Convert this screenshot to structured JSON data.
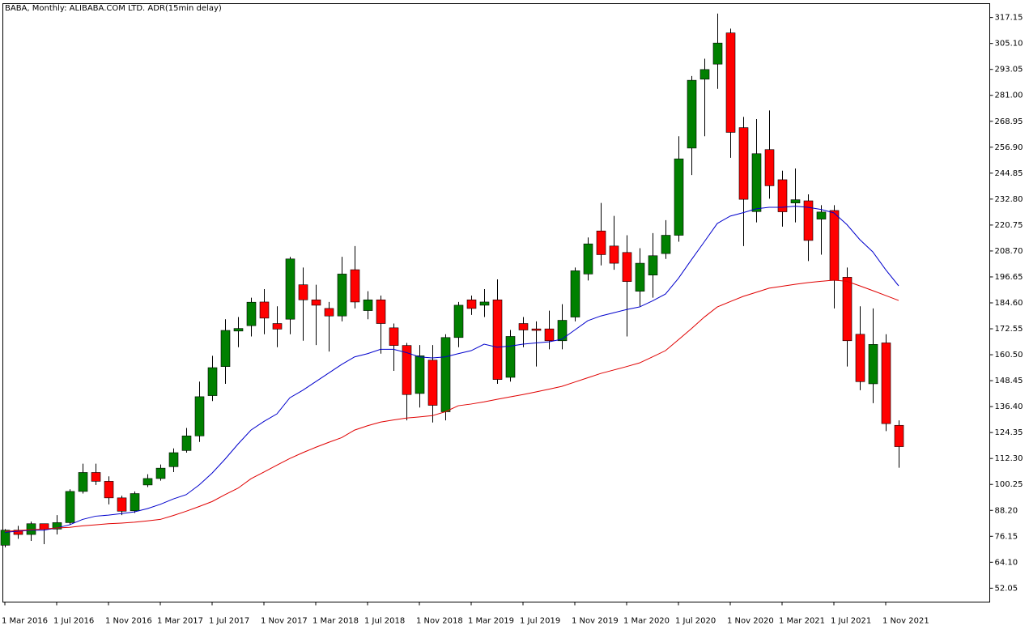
{
  "chart_data": {
    "type": "candlestick",
    "title": "BABA, Monthly:  ALIBABA.COM LTD. ADR(15min delay)",
    "categories": [
      "1 Mar 2016",
      null,
      null,
      null,
      "1 Jul 2016",
      null,
      null,
      null,
      "1 Nov 2016",
      null,
      null,
      null,
      "1 Mar 2017",
      null,
      null,
      null,
      "1 Jul 2017",
      null,
      null,
      null,
      "1 Nov 2017",
      null,
      null,
      null,
      "1 Mar 2018",
      null,
      null,
      null,
      "1 Jul 2018",
      null,
      null,
      null,
      "1 Nov 2018",
      null,
      null,
      null,
      "1 Mar 2019",
      null,
      null,
      null,
      "1 Jul 2019",
      null,
      null,
      null,
      "1 Nov 2019",
      null,
      null,
      null,
      "1 Mar 2020",
      null,
      null,
      null,
      "1 Jul 2020",
      null,
      null,
      null,
      "1 Nov 2020",
      null,
      null,
      null,
      "1 Mar 2021",
      null,
      null,
      null,
      "1 Jul 2021",
      null,
      null,
      null,
      "1 Nov 2021",
      null
    ],
    "open": [
      72,
      79,
      77,
      82,
      79.5,
      82.5,
      97,
      105.8,
      101.7,
      94,
      88,
      100,
      103,
      108.5,
      116,
      122.8,
      141.5,
      155,
      171.5,
      174,
      185,
      175,
      177,
      193,
      186,
      182,
      178.5,
      200,
      181,
      186,
      173,
      164.8,
      142.5,
      158,
      134,
      168.5,
      186,
      183.5,
      186,
      150,
      175,
      172.5,
      172.5,
      167,
      178,
      198,
      218,
      211,
      208,
      190,
      197.5,
      207.5,
      216,
      256.5,
      288.5,
      295.5,
      310,
      266,
      227,
      255.8,
      241.8,
      231,
      232,
      223.5,
      227.5,
      196.5,
      170,
      147,
      166,
      127.7
    ],
    "high": [
      79.5,
      81,
      83,
      82,
      86,
      98,
      109.9,
      109.9,
      104,
      95,
      97,
      105,
      109.5,
      117,
      126.5,
      148,
      160,
      177,
      178,
      187,
      191,
      183,
      206,
      201,
      193,
      185,
      206,
      211,
      190,
      188,
      175,
      166,
      165,
      165,
      170,
      185,
      188,
      191,
      195.5,
      172,
      178,
      176,
      181,
      184,
      201,
      215,
      231,
      225,
      216,
      210,
      217,
      223,
      262,
      290,
      298,
      319,
      312,
      271,
      270,
      274,
      246,
      247,
      235,
      230,
      230,
      201,
      183,
      182,
      170,
      130
    ],
    "low": [
      71,
      75,
      74,
      72.5,
      77,
      81.5,
      96,
      100,
      91,
      86,
      87,
      99,
      102,
      106,
      115,
      120,
      139,
      147,
      164,
      169,
      170,
      164,
      170,
      167,
      165,
      162,
      176,
      182,
      177,
      161,
      153,
      130,
      136,
      129,
      130,
      164,
      179,
      178,
      147,
      148,
      164,
      155,
      163,
      163,
      176,
      195,
      202,
      200,
      169,
      183,
      187,
      205,
      213,
      244,
      262,
      284,
      252,
      211,
      222,
      233,
      220,
      222,
      204,
      207,
      182,
      155,
      144,
      138,
      125,
      108
    ],
    "close": [
      79,
      77,
      82,
      79.5,
      82.5,
      97,
      105.8,
      101.7,
      94,
      87.8,
      96,
      103,
      107.8,
      115,
      122.8,
      141,
      154.5,
      171.8,
      172.7,
      184.9,
      177.5,
      172.4,
      205,
      186,
      183.5,
      178.5,
      198,
      185,
      186,
      175,
      164.8,
      142,
      160,
      137,
      168.5,
      183.5,
      182,
      185,
      149,
      169,
      172,
      171.8,
      167,
      176.5,
      199.5,
      212,
      207,
      203,
      194.5,
      203,
      206.5,
      216,
      251.5,
      288,
      293,
      305.3,
      263.8,
      232.7,
      253.9,
      239,
      226.9,
      232.5,
      213.6,
      226.8,
      195,
      167,
      148,
      165.3,
      128.5,
      117.8
    ],
    "up_color": "#008000",
    "down_color": "#ff0000",
    "series": [
      {
        "color": "#0000cc",
        "values": [
          78,
          78.5,
          79,
          79,
          80,
          81.5,
          84,
          85.5,
          86,
          86.7,
          87.5,
          89,
          91,
          93.5,
          95.5,
          100,
          105.5,
          112,
          119,
          125.5,
          129.5,
          133,
          140.5,
          144,
          148,
          152,
          156,
          159.5,
          161,
          163,
          163,
          161.5,
          159.5,
          159,
          159.5,
          161,
          162.4,
          165.4,
          164,
          164.5,
          165.4,
          166,
          166.5,
          167.7,
          172,
          176.3,
          178.5,
          180,
          181.5,
          182.7,
          185.5,
          188.7,
          196,
          204.6,
          213,
          221.5,
          224.9,
          226.5,
          228.3,
          229,
          229,
          229.5,
          229,
          228,
          226.4,
          221,
          214,
          208.3,
          200,
          192.5
        ]
      },
      {
        "color": "#e00000",
        "values": [
          78.4,
          78.8,
          79.2,
          79.5,
          80,
          80.3,
          81,
          81.5,
          82,
          82.3,
          82.7,
          83.3,
          84,
          85.8,
          87.8,
          90,
          92.3,
          95.5,
          98.5,
          102.9,
          106,
          109.2,
          112.3,
          115,
          117.5,
          119.8,
          122,
          125.5,
          127.5,
          129.2,
          130.2,
          131.1,
          131.6,
          132.2,
          134,
          136.8,
          137.6,
          138.6,
          139.8,
          140.9,
          142,
          143.2,
          144.5,
          145.8,
          147.8,
          149.8,
          151.8,
          153.4,
          155,
          156.7,
          159.5,
          162.4,
          167.5,
          172.6,
          178,
          182.7,
          185.2,
          187.6,
          189.5,
          191.4,
          192.3,
          193.2,
          194,
          194.6,
          195.2,
          194.6,
          192.5,
          190.3,
          188,
          185.7
        ]
      }
    ],
    "ylim": [
      45.6,
      323.6
    ],
    "yticks": [
      317.15,
      {
        "value": 305.1,
        "label": "305.10"
      },
      293.05,
      {
        "value": 281,
        "label": "281.00"
      },
      268.95,
      {
        "value": 256.9,
        "label": "256.90"
      },
      244.85,
      {
        "value": 232.8,
        "label": "232.80"
      },
      220.75,
      {
        "value": 208.7,
        "label": "208.70"
      },
      196.65,
      {
        "value": 184.6,
        "label": "184.60"
      },
      172.55,
      {
        "value": 160.5,
        "label": "160.50"
      },
      148.45,
      {
        "value": 136.4,
        "label": "136.40"
      },
      124.35,
      {
        "value": 112.3,
        "label": "112.30"
      },
      100.25,
      {
        "value": 88.2,
        "label": "88.20"
      },
      76.15,
      {
        "value": 64.1,
        "label": "64.10"
      },
      52.05
    ]
  }
}
